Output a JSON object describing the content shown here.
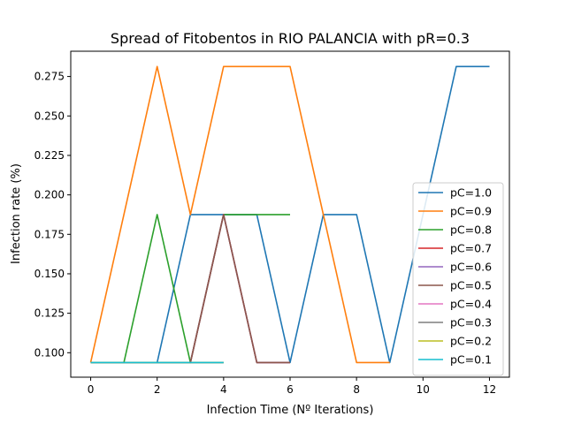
{
  "chart_data": {
    "type": "line",
    "title": "Spread of Fitobentos in RIO PALANCIA with pR=0.3",
    "xlabel": "Infection Time (Nº Iterations)",
    "ylabel": "Infection rate (%)",
    "xlim": [
      -0.6,
      12.6
    ],
    "ylim": [
      0.0845,
      0.291
    ],
    "xticks": [
      0,
      2,
      4,
      6,
      8,
      10,
      12
    ],
    "xtick_labels": [
      "0",
      "2",
      "4",
      "6",
      "8",
      "10",
      "12"
    ],
    "yticks": [
      0.1,
      0.125,
      0.15,
      0.175,
      0.2,
      0.225,
      0.25,
      0.275
    ],
    "ytick_labels": [
      "0.100",
      "0.125",
      "0.150",
      "0.175",
      "0.200",
      "0.225",
      "0.250",
      "0.275"
    ],
    "grid": false,
    "legend_position": "center-right",
    "series": [
      {
        "name": "pC=1.0",
        "color": "#1f77b4",
        "x": [
          0,
          1,
          2,
          3,
          4,
          5,
          6,
          7,
          8,
          9,
          10,
          11,
          12
        ],
        "y": [
          0.0938,
          0.0938,
          0.0938,
          0.1875,
          0.1875,
          0.1875,
          0.0938,
          0.1875,
          0.1875,
          0.0938,
          0.1875,
          0.2813,
          0.2813
        ]
      },
      {
        "name": "pC=0.9",
        "color": "#ff7f0e",
        "x": [
          0,
          1,
          2,
          3,
          4,
          5,
          6,
          7,
          8,
          9
        ],
        "y": [
          0.0938,
          0.1875,
          0.2813,
          0.1875,
          0.2813,
          0.2813,
          0.2813,
          0.1875,
          0.0938,
          0.0938
        ]
      },
      {
        "name": "pC=0.8",
        "color": "#2ca02c",
        "x": [
          0,
          1,
          2,
          3,
          4,
          5,
          6
        ],
        "y": [
          0.0938,
          0.0938,
          0.1875,
          0.0938,
          0.1875,
          0.1875,
          0.1875
        ]
      },
      {
        "name": "pC=0.7",
        "color": "#d62728",
        "x": [
          0,
          1,
          2,
          3,
          4,
          5,
          6
        ],
        "y": [
          0.0938,
          0.0938,
          0.0938,
          0.0938,
          0.1875,
          0.0938,
          0.0938
        ]
      },
      {
        "name": "pC=0.6",
        "color": "#9467bd",
        "x": [
          0,
          1,
          2,
          3,
          4,
          5,
          6
        ],
        "y": [
          0.0938,
          0.0938,
          0.0938,
          0.0938,
          0.1875,
          0.0938,
          0.0938
        ]
      },
      {
        "name": "pC=0.5",
        "color": "#8c564b",
        "x": [
          0,
          1,
          2,
          3,
          4,
          5,
          6
        ],
        "y": [
          0.0938,
          0.0938,
          0.0938,
          0.0938,
          0.1875,
          0.0938,
          0.0938
        ]
      },
      {
        "name": "pC=0.4",
        "color": "#e377c2",
        "x": [
          0,
          1,
          2,
          3,
          4
        ],
        "y": [
          0.0938,
          0.0938,
          0.0938,
          0.0938,
          0.0938
        ]
      },
      {
        "name": "pC=0.3",
        "color": "#7f7f7f",
        "x": [
          0,
          1,
          2,
          3,
          4
        ],
        "y": [
          0.0938,
          0.0938,
          0.0938,
          0.0938,
          0.0938
        ]
      },
      {
        "name": "pC=0.2",
        "color": "#bcbd22",
        "x": [
          0,
          1,
          2,
          3,
          4
        ],
        "y": [
          0.0938,
          0.0938,
          0.0938,
          0.0938,
          0.0938
        ]
      },
      {
        "name": "pC=0.1",
        "color": "#17becf",
        "x": [
          0,
          1,
          2,
          3,
          4
        ],
        "y": [
          0.0938,
          0.0938,
          0.0938,
          0.0938,
          0.0938
        ]
      }
    ]
  }
}
